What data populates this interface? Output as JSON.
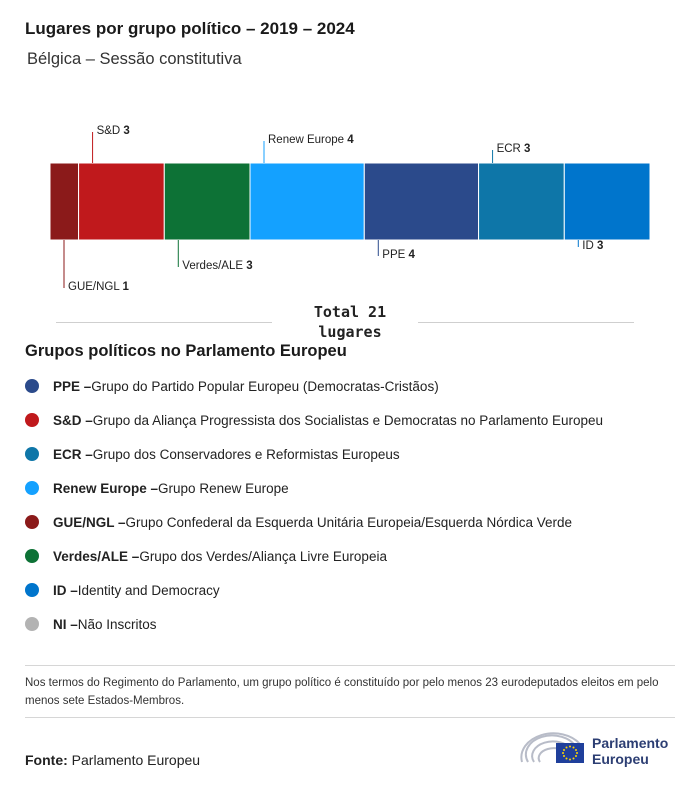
{
  "header": {
    "title": "Lugares por grupo político – 2019 – 2024",
    "subtitle": "Bélgica – Sessão constitutiva"
  },
  "chart_data": {
    "type": "bar",
    "orientation": "stacked-horizontal",
    "categories": [
      "GUE/NGL",
      "S&D",
      "Verdes/ALE",
      "Renew Europe",
      "PPE",
      "ECR",
      "ID"
    ],
    "values": [
      1,
      3,
      3,
      4,
      4,
      3,
      3
    ],
    "colors": [
      "#8b1a1a",
      "#c0191c",
      "#0d7236",
      "#14a1ff",
      "#2b4a8b",
      "#0e76a8",
      "#0075cc"
    ],
    "label_positions": [
      "below",
      "above",
      "below",
      "above",
      "below",
      "above",
      "below"
    ],
    "total_label": "Total 21 lugares"
  },
  "legend": {
    "title": "Grupos políticos no Parlamento Europeu",
    "items": [
      {
        "abbr": "PPE",
        "name": "Grupo do Partido Popular Europeu (Democratas-Cristãos)",
        "color": "#2b4a8b"
      },
      {
        "abbr": "S&D",
        "name": "Grupo da Aliança Progressista dos Socialistas e Democratas no Parlamento Europeu",
        "color": "#c0191c"
      },
      {
        "abbr": "ECR",
        "name": "Grupo dos Conservadores e Reformistas Europeus",
        "color": "#0e76a8"
      },
      {
        "abbr": "Renew Europe",
        "name": "Grupo Renew Europe",
        "color": "#14a1ff"
      },
      {
        "abbr": "GUE/NGL",
        "name": "Grupo Confederal da Esquerda Unitária Europeia/Esquerda Nórdica Verde",
        "color": "#8b1a1a"
      },
      {
        "abbr": "Verdes/ALE",
        "name": "Grupo dos Verdes/Aliança Livre Europeia",
        "color": "#0d7236"
      },
      {
        "abbr": "ID",
        "name": "Identity and Democracy",
        "color": "#0075cc"
      },
      {
        "abbr": "NI",
        "name": "Não Inscritos",
        "color": "#b3b3b3"
      }
    ]
  },
  "footer": {
    "note": "Nos termos do Regimento do Parlamento, um grupo político é constituído por pelo menos 23 eurodeputados eleitos em pelo menos sete Estados-Membros.",
    "source_label": "Fonte:",
    "source_value": "Parlamento Europeu",
    "logo_line1": "Parlamento",
    "logo_line2": "Europeu"
  }
}
